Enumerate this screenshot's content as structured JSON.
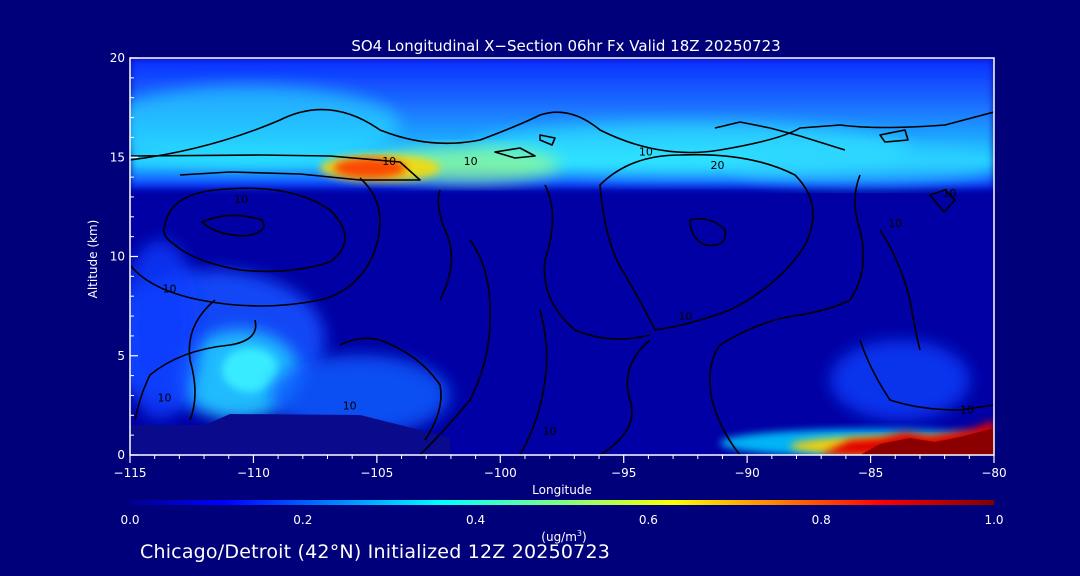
{
  "chart_data": {
    "type": "heatmap",
    "title": "SO4 Longitudinal X−Section 06hr  Fx Valid 18Z 20250723",
    "xlabel": "Longitude",
    "ylabel": "Altitude (km)",
    "xlim": [
      -115,
      -80
    ],
    "ylim": [
      0,
      20
    ],
    "x_ticks": [
      -115,
      -110,
      -105,
      -100,
      -95,
      -90,
      -85,
      -80
    ],
    "x_tick_labels": [
      "−115",
      "−110",
      "−105",
      "−100",
      "−95",
      "−90",
      "−85",
      "−80"
    ],
    "y_ticks": [
      0,
      5,
      10,
      15,
      20
    ],
    "y_tick_labels": [
      "0",
      "5",
      "10",
      "15",
      "20"
    ],
    "colorbar": {
      "min": 0.0,
      "max": 1.0,
      "ticks": [
        0.0,
        0.2,
        0.4,
        0.6,
        0.8,
        1.0
      ],
      "tick_labels": [
        "0.0",
        "0.2",
        "0.4",
        "0.6",
        "0.8",
        "1.0"
      ],
      "label_base": "(ug/m",
      "label_sup": "3",
      "label_end": ")",
      "colormap": "jet"
    },
    "contour_labels": [
      {
        "text": "10",
        "lon": -104.5,
        "alt": 14.8
      },
      {
        "text": "10",
        "lon": -101.2,
        "alt": 14.8
      },
      {
        "text": "10",
        "lon": -94.1,
        "alt": 15.3
      },
      {
        "text": "20",
        "lon": -91.2,
        "alt": 14.6
      },
      {
        "text": "10",
        "lon": -110.5,
        "alt": 12.9
      },
      {
        "text": "10",
        "lon": -113.4,
        "alt": 8.4
      },
      {
        "text": "10",
        "lon": -92.5,
        "alt": 7.0
      },
      {
        "text": "10",
        "lon": -113.6,
        "alt": 2.9
      },
      {
        "text": "10",
        "lon": -106.1,
        "alt": 2.5
      },
      {
        "text": "10",
        "lon": -98.0,
        "alt": 1.2
      },
      {
        "text": "10",
        "lon": -81.1,
        "alt": 2.3
      },
      {
        "text": "10",
        "lon": -84.0,
        "alt": 11.7
      },
      {
        "text": "10",
        "lon": -81.8,
        "alt": 13.2
      }
    ]
  },
  "footer": {
    "subtitle": "Chicago/Detroit (42°N) Initialized 12Z 20250723"
  },
  "colors": {
    "background": "#00007a",
    "axis": "#ffffff",
    "contour": "#000000"
  }
}
